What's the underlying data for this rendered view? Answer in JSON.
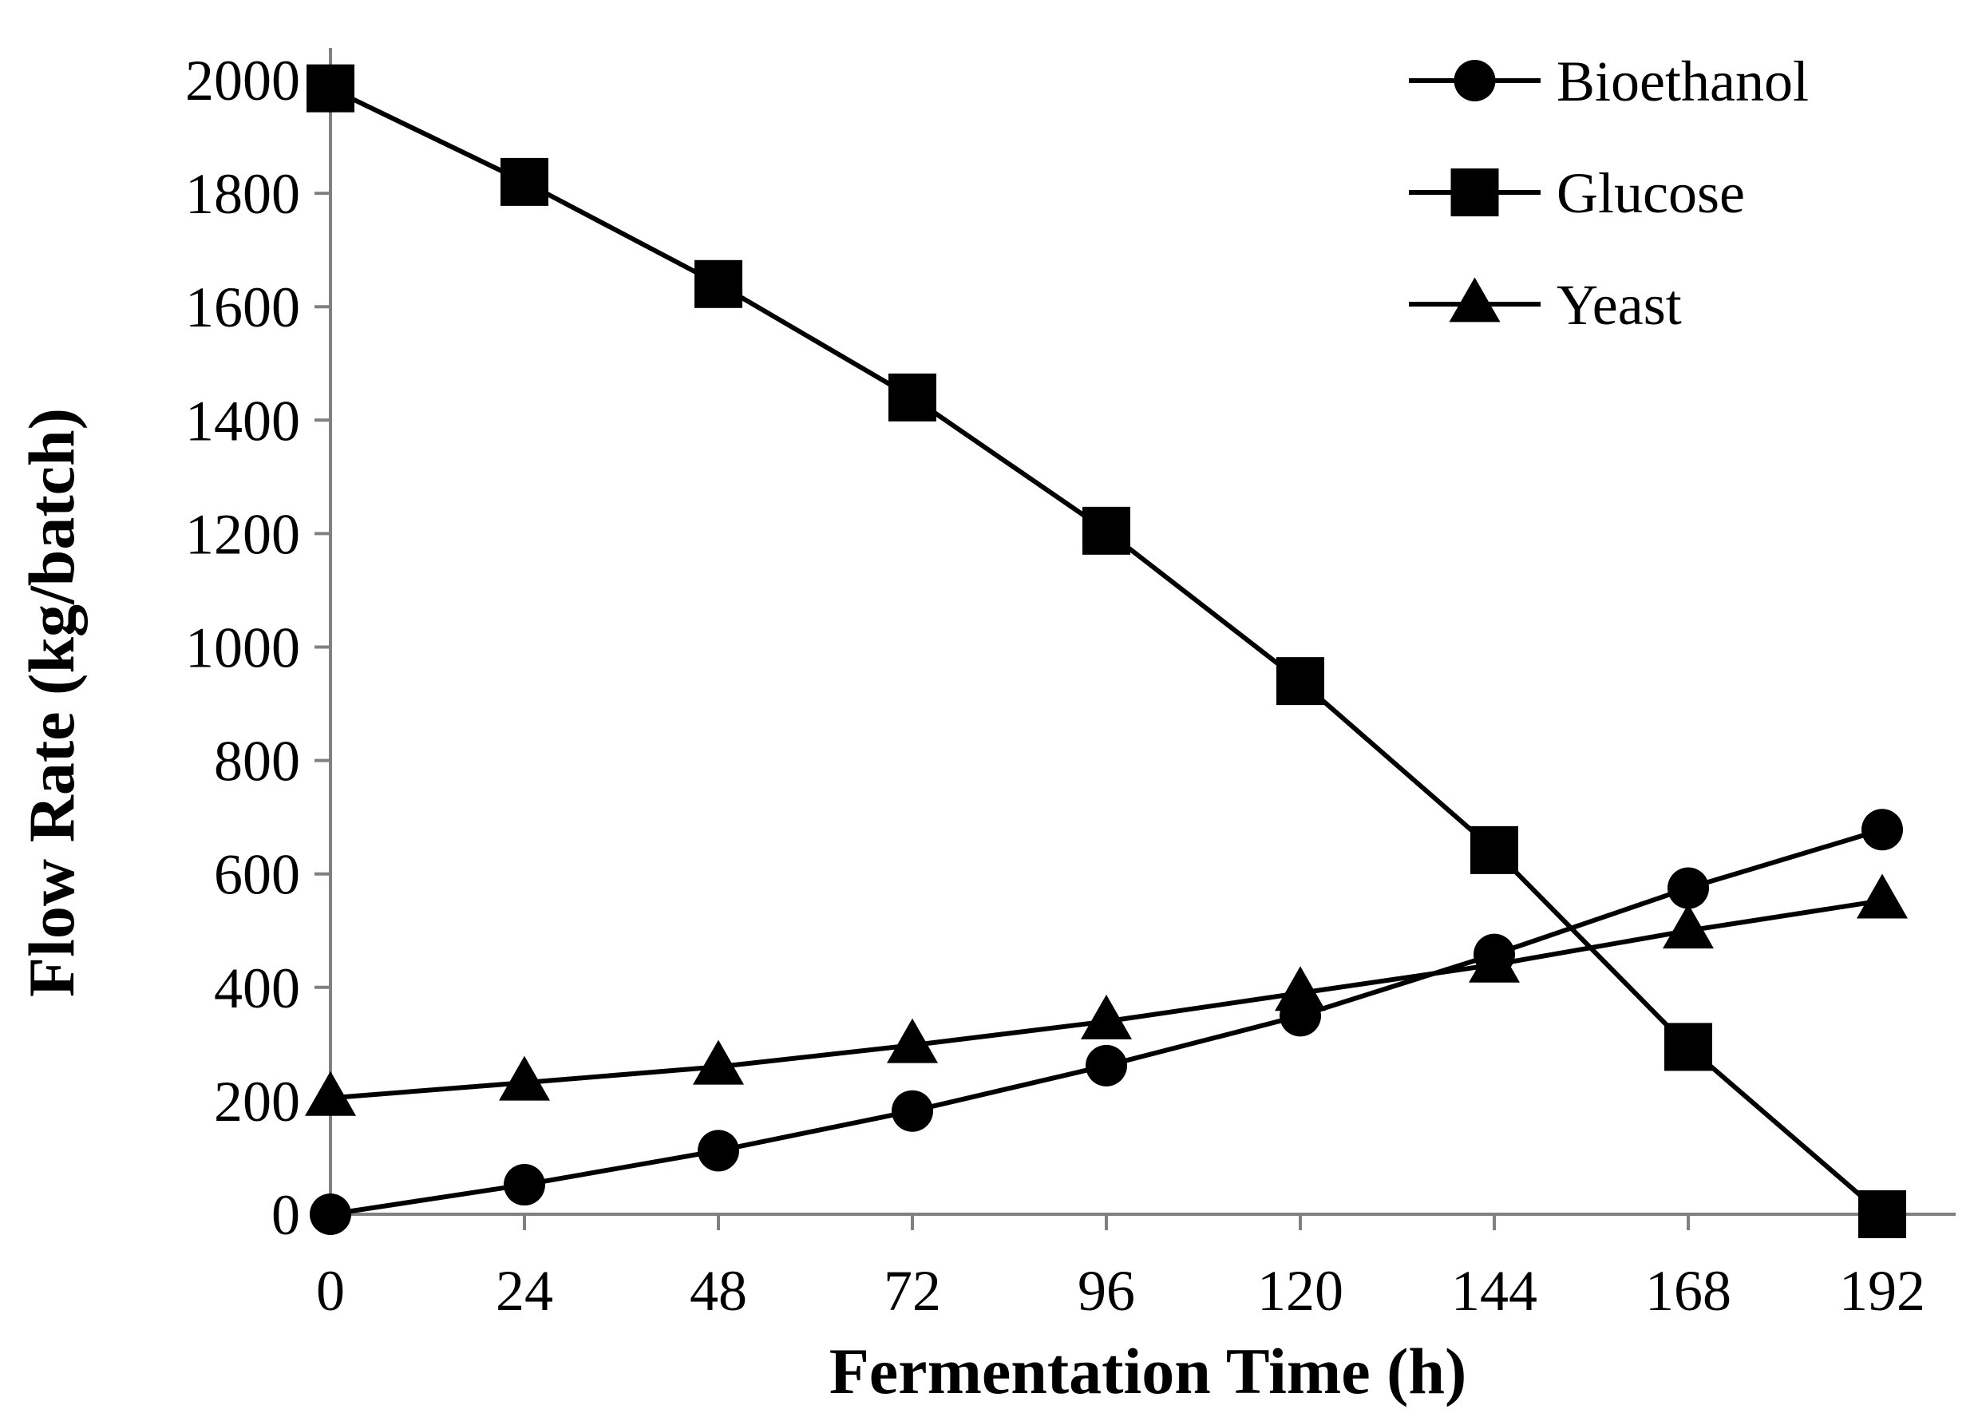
{
  "chart_data": {
    "type": "line",
    "title": "",
    "xlabel": "Fermentation Time (h)",
    "ylabel": "Flow Rate (kg/batch)",
    "x": [
      0,
      24,
      48,
      72,
      96,
      120,
      144,
      168,
      192
    ],
    "xticks": [
      "0",
      "24",
      "48",
      "72",
      "96",
      "120",
      "144",
      "168",
      "192"
    ],
    "yticks": [
      "0",
      "200",
      "400",
      "600",
      "800",
      "1000",
      "1200",
      "1400",
      "1600",
      "1800",
      "2000"
    ],
    "xlim": [
      0,
      200
    ],
    "ylim": [
      0,
      2000
    ],
    "grid": false,
    "legend_position": "top-right",
    "series": [
      {
        "name": "Bioethanol",
        "marker": "circle",
        "values": [
          0,
          52,
          112,
          182,
          262,
          350,
          458,
          575,
          678
        ]
      },
      {
        "name": "Glucose",
        "marker": "square",
        "values": [
          1985,
          1820,
          1640,
          1440,
          1205,
          940,
          642,
          295,
          0
        ]
      },
      {
        "name": "Yeast",
        "marker": "triangle",
        "values": [
          205,
          232,
          260,
          298,
          340,
          390,
          440,
          500,
          553
        ]
      }
    ],
    "colors": {
      "line": "#000000",
      "axis": "#808080"
    }
  }
}
